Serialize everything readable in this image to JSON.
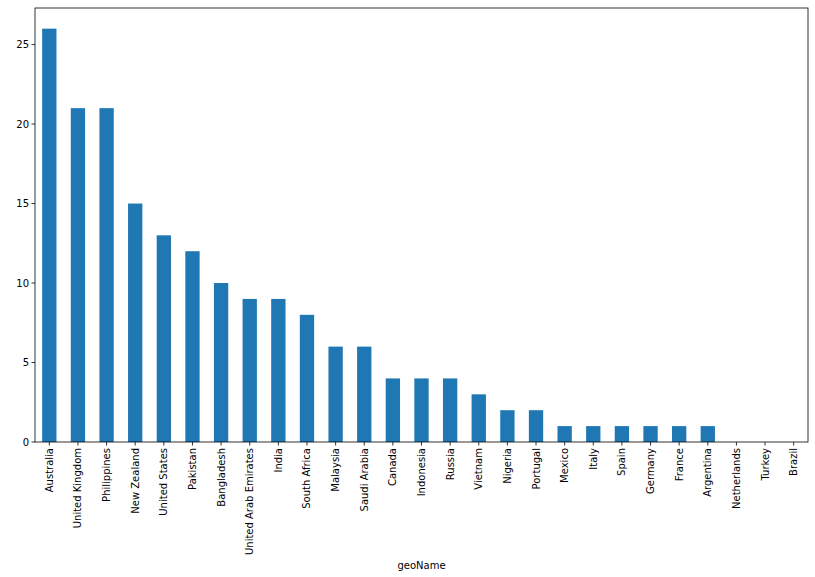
{
  "chart_data": {
    "type": "bar",
    "x_label": "geoName",
    "categories": [
      "Australia",
      "United Kingdom",
      "Philippines",
      "New Zealand",
      "United States",
      "Pakistan",
      "Bangladesh",
      "United Arab Emirates",
      "India",
      "South Africa",
      "Malaysia",
      "Saudi Arabia",
      "Canada",
      "Indonesia",
      "Russia",
      "Vietnam",
      "Nigeria",
      "Portugal",
      "Mexico",
      "Italy",
      "Spain",
      "Germany",
      "France",
      "Argentina",
      "Netherlands",
      "Turkey",
      "Brazil"
    ],
    "values": [
      26,
      21,
      21,
      15,
      13,
      12,
      10,
      9,
      9,
      8,
      6,
      6,
      4,
      4,
      4,
      3,
      2,
      2,
      1,
      1,
      1,
      1,
      1,
      1,
      0,
      0,
      0
    ],
    "color": "#1f77b4",
    "ylim": [
      0,
      27.3
    ],
    "yticks": [
      0,
      5,
      10,
      15,
      20,
      25
    ],
    "grid": false
  }
}
